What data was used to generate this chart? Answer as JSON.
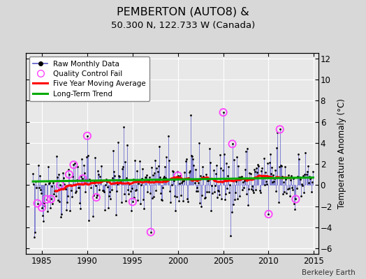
{
  "title": "PEMBERTON (AUTO8) &",
  "subtitle": "50.300 N, 122.733 W (Canada)",
  "ylabel": "Temperature Anomaly (°C)",
  "watermark": "Berkeley Earth",
  "ylim": [
    -6.5,
    12.5
  ],
  "yticks": [
    -6,
    -4,
    -2,
    0,
    2,
    4,
    6,
    8,
    10,
    12
  ],
  "xlim": [
    1983.2,
    2015.5
  ],
  "xticks": [
    1985,
    1990,
    1995,
    2000,
    2005,
    2010,
    2015
  ],
  "bg_color": "#d8d8d8",
  "plot_bg_color": "#e8e8e8",
  "grid_color": "#ffffff",
  "raw_color": "#6666cc",
  "raw_marker_color": "#000000",
  "moving_avg_color": "#ff0000",
  "trend_color": "#00aa00",
  "qc_fail_color": "#ff44ff",
  "seed": 42
}
